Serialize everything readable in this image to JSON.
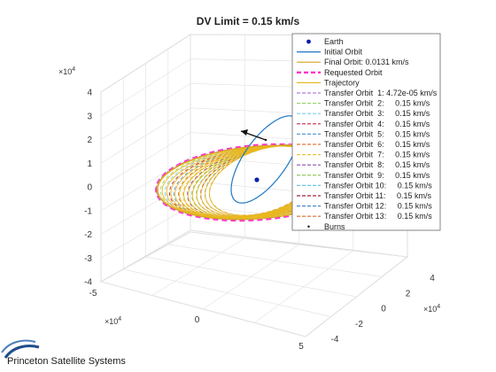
{
  "chart_data": {
    "type": "line",
    "subtype": "3d-orbit-plot",
    "title": "DV Limit = 0.15 km/s",
    "axes": {
      "x": {
        "exponent_label": "×10^4",
        "ticks": [
          -5,
          0,
          5
        ],
        "lim": [
          -5,
          5
        ]
      },
      "y": {
        "exponent_label": "×10^4",
        "ticks": [
          -4,
          -2,
          0,
          2,
          4
        ],
        "lim": [
          -4,
          4
        ]
      },
      "z": {
        "exponent_label": "×10^4",
        "ticks": [
          -4,
          -3,
          -2,
          -1,
          0,
          1,
          2,
          3,
          4
        ],
        "lim": [
          -4,
          4
        ]
      }
    },
    "grid": true,
    "legend_position": "top-right",
    "legend": [
      {
        "label": "Earth",
        "style": "marker",
        "color": "#0b1fa8"
      },
      {
        "label": "Initial Orbit",
        "style": "solid",
        "color": "#1f77c4"
      },
      {
        "label": "Final Orbit: 0.0131 km/s",
        "style": "solid",
        "color": "#d9a21b"
      },
      {
        "label": "Requested Orbit",
        "style": "thick-dash",
        "color": "#ff33cc"
      },
      {
        "label": "Trajectory",
        "style": "solid",
        "color": "#e8b820"
      },
      {
        "label": "Transfer Orbit  1: 4.72e-05 km/s",
        "style": "dash",
        "color": "#b07ed8"
      },
      {
        "label": "Transfer Orbit  2:     0.15 km/s",
        "style": "dash",
        "color": "#9bd36a"
      },
      {
        "label": "Transfer Orbit  3:     0.15 km/s",
        "style": "dash",
        "color": "#7ad0e8"
      },
      {
        "label": "Transfer Orbit  4:     0.15 km/s",
        "style": "dash",
        "color": "#c0284a"
      },
      {
        "label": "Transfer Orbit  5:     0.15 km/s",
        "style": "dash",
        "color": "#5b9bd5"
      },
      {
        "label": "Transfer Orbit  6:     0.15 km/s",
        "style": "dash",
        "color": "#e07a3c"
      },
      {
        "label": "Transfer Orbit  7:     0.15 km/s",
        "style": "dash",
        "color": "#e8c43a"
      },
      {
        "label": "Transfer Orbit  8:     0.15 km/s",
        "style": "dash",
        "color": "#8c4fb0"
      },
      {
        "label": "Transfer Orbit  9:     0.15 km/s",
        "style": "dash",
        "color": "#86c24a"
      },
      {
        "label": "Transfer Orbit 10:     0.15 km/s",
        "style": "dash",
        "color": "#6cc7e3"
      },
      {
        "label": "Transfer Orbit 11:     0.15 km/s",
        "style": "dash",
        "color": "#a3233f"
      },
      {
        "label": "Transfer Orbit 12:     0.15 km/s",
        "style": "dash",
        "color": "#4a88c8"
      },
      {
        "label": "Transfer Orbit 13:     0.15 km/s",
        "style": "dash",
        "color": "#d9692e"
      },
      {
        "label": "Burns",
        "style": "dot",
        "color": "#000000"
      }
    ]
  },
  "branding": {
    "logo_text": "Princeton Satellite Systems",
    "logo_color": "#1f4e8c"
  }
}
